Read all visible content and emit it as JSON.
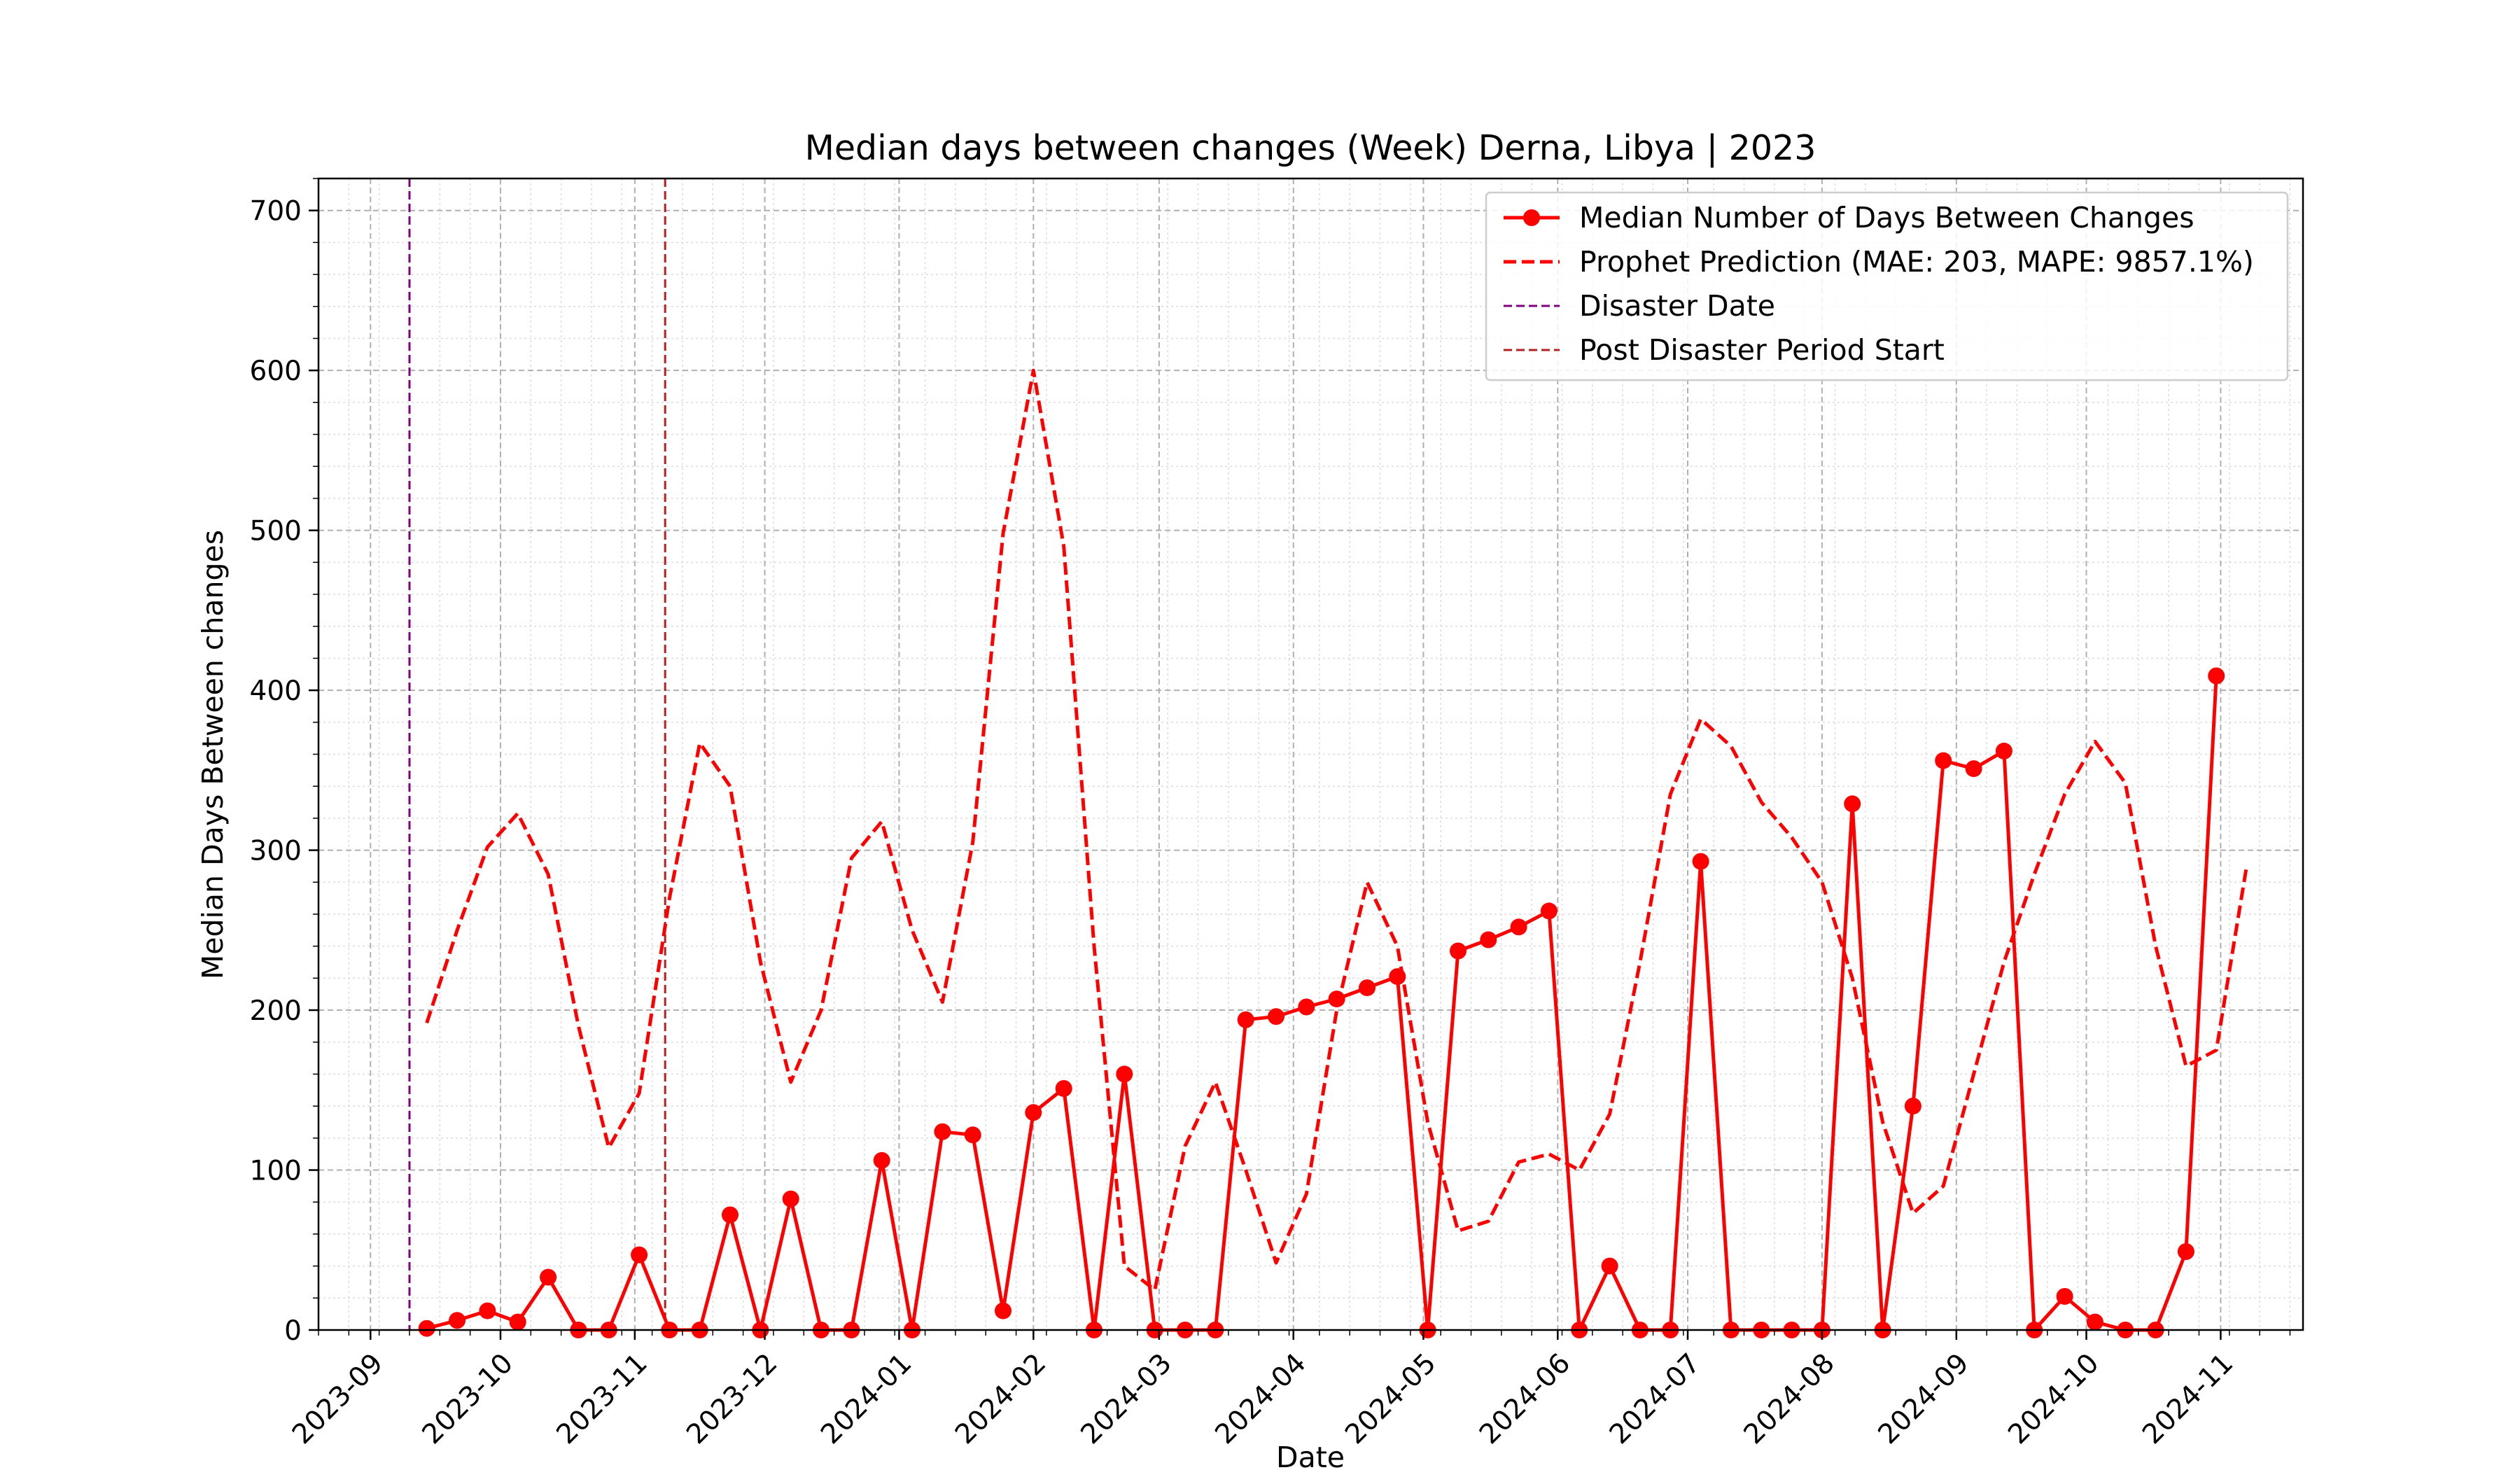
{
  "chart_data": {
    "type": "line",
    "title": "Median days between changes (Week) Derna, Libya | 2023",
    "xlabel": "Date",
    "ylabel": "Median Days Between changes",
    "xlim": [
      "2023-08-20",
      "2024-11-20"
    ],
    "ylim": [
      0,
      720
    ],
    "grid": true,
    "legend_position": "top-right",
    "yticks": [
      0,
      100,
      200,
      300,
      400,
      500,
      600,
      700
    ],
    "xticks": [
      "2023-09",
      "2023-10",
      "2023-11",
      "2023-12",
      "2024-01",
      "2024-02",
      "2024-03",
      "2024-04",
      "2024-05",
      "2024-06",
      "2024-07",
      "2024-08",
      "2024-09",
      "2024-10",
      "2024-11"
    ],
    "legend": [
      {
        "label": "Median Number of Days Between Changes",
        "color": "#ff0000",
        "style": "solid-marker"
      },
      {
        "label": "Prophet Prediction (MAE: 203, MAPE: 9857.1%)",
        "color": "#ff0000",
        "style": "dashed"
      },
      {
        "label": "Disaster Date",
        "color": "#800080",
        "style": "dashed-thin"
      },
      {
        "label": "Post Disaster Period Start",
        "color": "#b22222",
        "style": "dashed-thin"
      }
    ],
    "vlines": [
      {
        "name": "Disaster Date",
        "x": "2023-09-10",
        "color": "#800080"
      },
      {
        "name": "Post Disaster Period Start",
        "x": "2023-11-08",
        "color": "#b22222"
      }
    ],
    "series": [
      {
        "name": "Median Number of Days Between Changes",
        "color": "#ff0000",
        "x": [
          "2023-09-14",
          "2023-09-21",
          "2023-09-28",
          "2023-10-05",
          "2023-10-12",
          "2023-10-19",
          "2023-10-26",
          "2023-11-02",
          "2023-11-09",
          "2023-11-16",
          "2023-11-23",
          "2023-11-30",
          "2023-12-07",
          "2023-12-14",
          "2023-12-21",
          "2023-12-28",
          "2024-01-04",
          "2024-01-11",
          "2024-01-18",
          "2024-01-25",
          "2024-02-01",
          "2024-02-08",
          "2024-02-15",
          "2024-02-22",
          "2024-02-29",
          "2024-03-07",
          "2024-03-14",
          "2024-03-21",
          "2024-03-28",
          "2024-04-04",
          "2024-04-11",
          "2024-04-18",
          "2024-04-25",
          "2024-05-02",
          "2024-05-09",
          "2024-05-16",
          "2024-05-23",
          "2024-05-30",
          "2024-06-06",
          "2024-06-13",
          "2024-06-20",
          "2024-06-27",
          "2024-07-04",
          "2024-07-11",
          "2024-07-18",
          "2024-07-25",
          "2024-08-01",
          "2024-08-08",
          "2024-08-15",
          "2024-08-22",
          "2024-08-29",
          "2024-09-05",
          "2024-09-12",
          "2024-09-19",
          "2024-09-26",
          "2024-10-03",
          "2024-10-10",
          "2024-10-17",
          "2024-10-24",
          "2024-10-31"
        ],
        "values": [
          1,
          6,
          12,
          5,
          33,
          0,
          0,
          47,
          0,
          0,
          72,
          0,
          82,
          0,
          0,
          106,
          0,
          124,
          122,
          12,
          136,
          151,
          0,
          160,
          0,
          0,
          0,
          194,
          196,
          202,
          207,
          214,
          221,
          0,
          237,
          244,
          252,
          262,
          0,
          40,
          0,
          0,
          293,
          0,
          0,
          0,
          0,
          329,
          0,
          140,
          356,
          351,
          362,
          0,
          21,
          5,
          0,
          0,
          49,
          409
        ]
      },
      {
        "name": "Prophet Prediction (MAE: 203, MAPE: 9857.1%)",
        "color": "#ff0000",
        "x": [
          "2023-09-14",
          "2023-09-21",
          "2023-09-28",
          "2023-10-05",
          "2023-10-12",
          "2023-10-19",
          "2023-10-26",
          "2023-11-02",
          "2023-11-09",
          "2023-11-16",
          "2023-11-23",
          "2023-11-30",
          "2023-12-07",
          "2023-12-14",
          "2023-12-21",
          "2023-12-28",
          "2024-01-04",
          "2024-01-11",
          "2024-01-18",
          "2024-01-25",
          "2024-02-01",
          "2024-02-08",
          "2024-02-15",
          "2024-02-22",
          "2024-02-29",
          "2024-03-07",
          "2024-03-14",
          "2024-03-21",
          "2024-03-28",
          "2024-04-04",
          "2024-04-11",
          "2024-04-18",
          "2024-04-25",
          "2024-05-02",
          "2024-05-09",
          "2024-05-16",
          "2024-05-23",
          "2024-05-30",
          "2024-06-06",
          "2024-06-13",
          "2024-06-20",
          "2024-06-27",
          "2024-07-04",
          "2024-07-11",
          "2024-07-18",
          "2024-07-25",
          "2024-08-01",
          "2024-08-08",
          "2024-08-15",
          "2024-08-22",
          "2024-08-29",
          "2024-09-05",
          "2024-09-12",
          "2024-09-19",
          "2024-09-26",
          "2024-10-03",
          "2024-10-10",
          "2024-10-17",
          "2024-10-24",
          "2024-10-31",
          "2024-11-07"
        ],
        "values": [
          192,
          250,
          302,
          323,
          285,
          190,
          114,
          148,
          270,
          367,
          340,
          230,
          155,
          200,
          295,
          318,
          250,
          205,
          305,
          498,
          600,
          490,
          240,
          40,
          25,
          115,
          155,
          100,
          42,
          85,
          200,
          280,
          240,
          130,
          62,
          68,
          105,
          110,
          100,
          135,
          230,
          335,
          382,
          365,
          330,
          308,
          280,
          220,
          130,
          73,
          90,
          160,
          230,
          285,
          335,
          368,
          342,
          240,
          165,
          175,
          290
        ]
      }
    ]
  }
}
